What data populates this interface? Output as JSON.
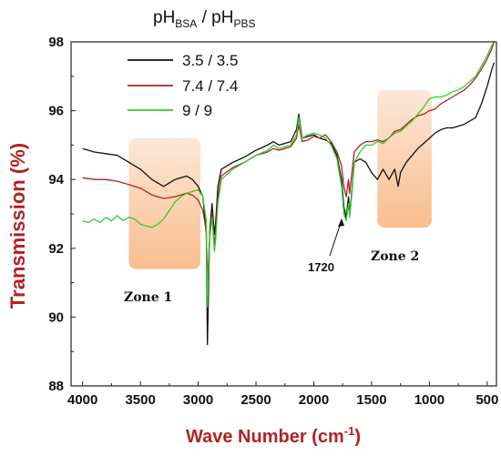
{
  "chart_data": {
    "type": "line",
    "title": "",
    "legend_title": {
      "main": "pH",
      "sub1": "BSA",
      "sep": " / ",
      "main2": "pH",
      "sub2": "PBS"
    },
    "xlabel": "Wave Number (cm",
    "xlabel_sup": "-1",
    "xlabel_close": ")",
    "ylabel": "Transmission (%)",
    "xlim": [
      4100,
      420
    ],
    "ylim": [
      88,
      98
    ],
    "x_ticks": [
      4000,
      3500,
      3000,
      2500,
      2000,
      1500,
      1000,
      500
    ],
    "y_ticks": [
      88,
      90,
      92,
      94,
      96,
      98
    ],
    "legend_position": "top-left",
    "colors": {
      "black": "#111111",
      "red": "#b22222",
      "green": "#33cc33",
      "axis_label": "#b22222",
      "zone": "#f8b27a"
    },
    "zones": [
      {
        "label": "Zone 1",
        "x_range": [
          3600,
          2980
        ],
        "y_range": [
          91.4,
          95.2
        ]
      },
      {
        "label": "Zone 2",
        "x_range": [
          1450,
          980
        ],
        "y_range": [
          92.6,
          96.6
        ]
      }
    ],
    "annotations": [
      {
        "text": "1720",
        "x": 1720,
        "y": 92.9
      }
    ],
    "series": [
      {
        "name": "3.5 / 3.5",
        "color": "#111111",
        "points": [
          [
            4000,
            94.9
          ],
          [
            3900,
            94.8
          ],
          [
            3800,
            94.75
          ],
          [
            3700,
            94.7
          ],
          [
            3600,
            94.5
          ],
          [
            3500,
            94.3
          ],
          [
            3400,
            94.0
          ],
          [
            3300,
            93.8
          ],
          [
            3200,
            94.0
          ],
          [
            3100,
            94.1
          ],
          [
            3050,
            94.0
          ],
          [
            3000,
            93.8
          ],
          [
            2960,
            93.5
          ],
          [
            2930,
            92.4
          ],
          [
            2920,
            89.2
          ],
          [
            2900,
            92.5
          ],
          [
            2880,
            93.3
          ],
          [
            2860,
            92.4
          ],
          [
            2850,
            92.7
          ],
          [
            2830,
            93.8
          ],
          [
            2800,
            94.3
          ],
          [
            2700,
            94.5
          ],
          [
            2600,
            94.65
          ],
          [
            2500,
            94.85
          ],
          [
            2400,
            95.0
          ],
          [
            2350,
            95.1
          ],
          [
            2300,
            95.0
          ],
          [
            2200,
            95.1
          ],
          [
            2150,
            95.45
          ],
          [
            2130,
            95.9
          ],
          [
            2100,
            95.2
          ],
          [
            2050,
            95.25
          ],
          [
            2000,
            95.3
          ],
          [
            1950,
            95.2
          ],
          [
            1900,
            95.15
          ],
          [
            1850,
            95.05
          ],
          [
            1800,
            94.7
          ],
          [
            1760,
            94.0
          ],
          [
            1740,
            93.2
          ],
          [
            1720,
            92.9
          ],
          [
            1700,
            93.5
          ],
          [
            1690,
            92.95
          ],
          [
            1670,
            93.7
          ],
          [
            1650,
            94.5
          ],
          [
            1600,
            94.6
          ],
          [
            1550,
            94.5
          ],
          [
            1500,
            94.2
          ],
          [
            1450,
            94.0
          ],
          [
            1400,
            94.3
          ],
          [
            1350,
            94.0
          ],
          [
            1300,
            94.3
          ],
          [
            1270,
            93.8
          ],
          [
            1250,
            94.2
          ],
          [
            1200,
            94.5
          ],
          [
            1150,
            94.7
          ],
          [
            1100,
            94.9
          ],
          [
            1050,
            95.05
          ],
          [
            1000,
            95.2
          ],
          [
            950,
            95.35
          ],
          [
            900,
            95.45
          ],
          [
            850,
            95.5
          ],
          [
            800,
            95.5
          ],
          [
            750,
            95.55
          ],
          [
            700,
            95.6
          ],
          [
            650,
            95.7
          ],
          [
            600,
            95.8
          ],
          [
            550,
            96.2
          ],
          [
            500,
            96.7
          ],
          [
            460,
            97.2
          ],
          [
            440,
            97.4
          ]
        ]
      },
      {
        "name": "7.4 / 7.4",
        "color": "#b22222",
        "points": [
          [
            4000,
            94.05
          ],
          [
            3900,
            94.0
          ],
          [
            3800,
            94.0
          ],
          [
            3700,
            93.95
          ],
          [
            3600,
            93.85
          ],
          [
            3500,
            93.75
          ],
          [
            3400,
            93.55
          ],
          [
            3300,
            93.45
          ],
          [
            3200,
            93.5
          ],
          [
            3100,
            93.6
          ],
          [
            3050,
            93.55
          ],
          [
            3000,
            93.4
          ],
          [
            2960,
            93.1
          ],
          [
            2930,
            92.5
          ],
          [
            2920,
            91.0
          ],
          [
            2900,
            92.4
          ],
          [
            2880,
            93.0
          ],
          [
            2860,
            92.1
          ],
          [
            2850,
            92.4
          ],
          [
            2830,
            93.5
          ],
          [
            2800,
            94.1
          ],
          [
            2700,
            94.35
          ],
          [
            2600,
            94.5
          ],
          [
            2500,
            94.7
          ],
          [
            2400,
            94.8
          ],
          [
            2350,
            94.9
          ],
          [
            2300,
            94.85
          ],
          [
            2200,
            94.95
          ],
          [
            2150,
            95.2
          ],
          [
            2130,
            95.6
          ],
          [
            2100,
            95.1
          ],
          [
            2050,
            95.15
          ],
          [
            2000,
            95.25
          ],
          [
            1950,
            95.2
          ],
          [
            1900,
            95.3
          ],
          [
            1850,
            95.1
          ],
          [
            1800,
            94.8
          ],
          [
            1760,
            94.4
          ],
          [
            1740,
            93.8
          ],
          [
            1720,
            93.5
          ],
          [
            1700,
            94.0
          ],
          [
            1690,
            93.6
          ],
          [
            1670,
            94.2
          ],
          [
            1650,
            94.8
          ],
          [
            1600,
            95.0
          ],
          [
            1550,
            95.1
          ],
          [
            1500,
            95.1
          ],
          [
            1450,
            95.15
          ],
          [
            1400,
            95.1
          ],
          [
            1350,
            95.2
          ],
          [
            1300,
            95.4
          ],
          [
            1250,
            95.45
          ],
          [
            1200,
            95.6
          ],
          [
            1150,
            95.75
          ],
          [
            1100,
            95.85
          ],
          [
            1050,
            95.9
          ],
          [
            1000,
            96.0
          ],
          [
            950,
            96.05
          ],
          [
            900,
            96.2
          ],
          [
            850,
            96.3
          ],
          [
            800,
            96.4
          ],
          [
            750,
            96.5
          ],
          [
            700,
            96.6
          ],
          [
            650,
            96.75
          ],
          [
            600,
            96.95
          ],
          [
            550,
            97.2
          ],
          [
            500,
            97.5
          ],
          [
            460,
            97.8
          ],
          [
            440,
            98.0
          ]
        ]
      },
      {
        "name": "9 / 9",
        "color": "#33cc33",
        "points": [
          [
            4000,
            92.8
          ],
          [
            3950,
            92.75
          ],
          [
            3900,
            92.85
          ],
          [
            3850,
            92.75
          ],
          [
            3800,
            92.9
          ],
          [
            3750,
            92.8
          ],
          [
            3700,
            92.95
          ],
          [
            3650,
            92.8
          ],
          [
            3600,
            92.9
          ],
          [
            3550,
            92.85
          ],
          [
            3500,
            92.7
          ],
          [
            3450,
            92.65
          ],
          [
            3400,
            92.6
          ],
          [
            3350,
            92.7
          ],
          [
            3300,
            92.85
          ],
          [
            3250,
            93.1
          ],
          [
            3200,
            93.35
          ],
          [
            3150,
            93.5
          ],
          [
            3100,
            93.6
          ],
          [
            3050,
            93.65
          ],
          [
            3000,
            93.7
          ],
          [
            2960,
            93.5
          ],
          [
            2930,
            92.8
          ],
          [
            2920,
            90.3
          ],
          [
            2900,
            92.3
          ],
          [
            2880,
            92.9
          ],
          [
            2860,
            91.9
          ],
          [
            2850,
            92.2
          ],
          [
            2830,
            93.3
          ],
          [
            2800,
            94.0
          ],
          [
            2700,
            94.3
          ],
          [
            2600,
            94.5
          ],
          [
            2500,
            94.7
          ],
          [
            2400,
            94.85
          ],
          [
            2350,
            95.0
          ],
          [
            2300,
            94.9
          ],
          [
            2200,
            95.0
          ],
          [
            2150,
            95.3
          ],
          [
            2130,
            95.8
          ],
          [
            2100,
            95.2
          ],
          [
            2050,
            95.3
          ],
          [
            2000,
            95.35
          ],
          [
            1950,
            95.3
          ],
          [
            1900,
            95.2
          ],
          [
            1850,
            95.0
          ],
          [
            1800,
            94.6
          ],
          [
            1760,
            93.8
          ],
          [
            1740,
            93.0
          ],
          [
            1720,
            92.8
          ],
          [
            1700,
            93.3
          ],
          [
            1690,
            92.9
          ],
          [
            1670,
            93.6
          ],
          [
            1650,
            94.5
          ],
          [
            1600,
            94.8
          ],
          [
            1550,
            95.0
          ],
          [
            1500,
            95.0
          ],
          [
            1450,
            95.1
          ],
          [
            1400,
            95.05
          ],
          [
            1350,
            95.2
          ],
          [
            1300,
            95.35
          ],
          [
            1250,
            95.4
          ],
          [
            1200,
            95.55
          ],
          [
            1150,
            95.7
          ],
          [
            1100,
            95.9
          ],
          [
            1050,
            96.1
          ],
          [
            1000,
            96.35
          ],
          [
            950,
            96.4
          ],
          [
            900,
            96.4
          ],
          [
            850,
            96.45
          ],
          [
            800,
            96.55
          ],
          [
            750,
            96.6
          ],
          [
            700,
            96.7
          ],
          [
            650,
            96.85
          ],
          [
            600,
            97.0
          ],
          [
            550,
            97.3
          ],
          [
            500,
            97.6
          ],
          [
            460,
            97.9
          ],
          [
            440,
            98.0
          ]
        ]
      }
    ]
  }
}
